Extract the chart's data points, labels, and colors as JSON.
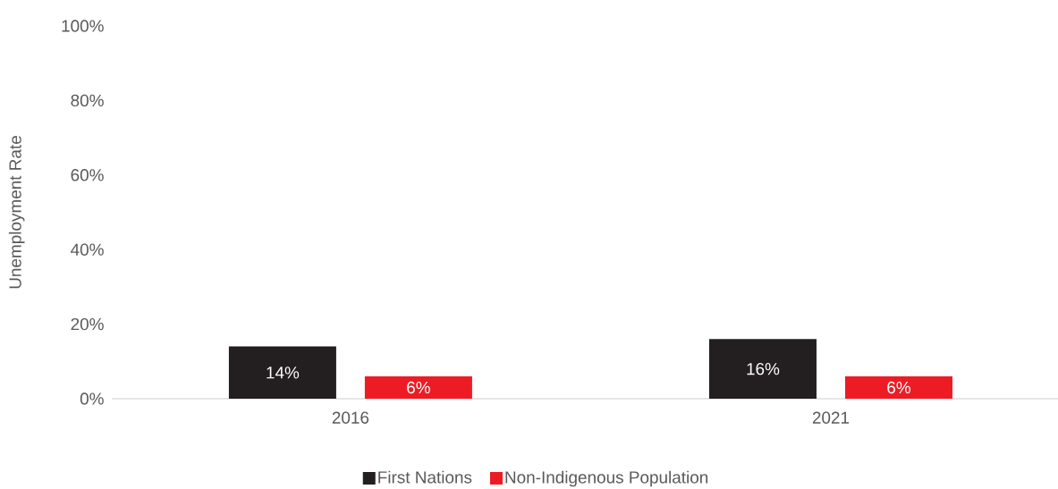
{
  "chart_data": {
    "type": "bar",
    "ylabel": "Unemployment Rate",
    "categories": [
      "2016",
      "2021"
    ],
    "series": [
      {
        "name": "First Nations",
        "color": "#231f20",
        "values": [
          14,
          16
        ],
        "value_labels": [
          "14%",
          "16%"
        ]
      },
      {
        "name": "Non-Indigenous Population",
        "color": "#ed1c24",
        "values": [
          6,
          6
        ],
        "value_labels": [
          "6%",
          "6%"
        ]
      }
    ],
    "ylim": [
      0,
      100
    ],
    "yticks": [
      {
        "value": 0,
        "label": "0%"
      },
      {
        "value": 20,
        "label": "20%"
      },
      {
        "value": 40,
        "label": "40%"
      },
      {
        "value": 60,
        "label": "60%"
      },
      {
        "value": 80,
        "label": "80%"
      },
      {
        "value": 100,
        "label": "100%"
      }
    ],
    "legend": "bottom"
  }
}
